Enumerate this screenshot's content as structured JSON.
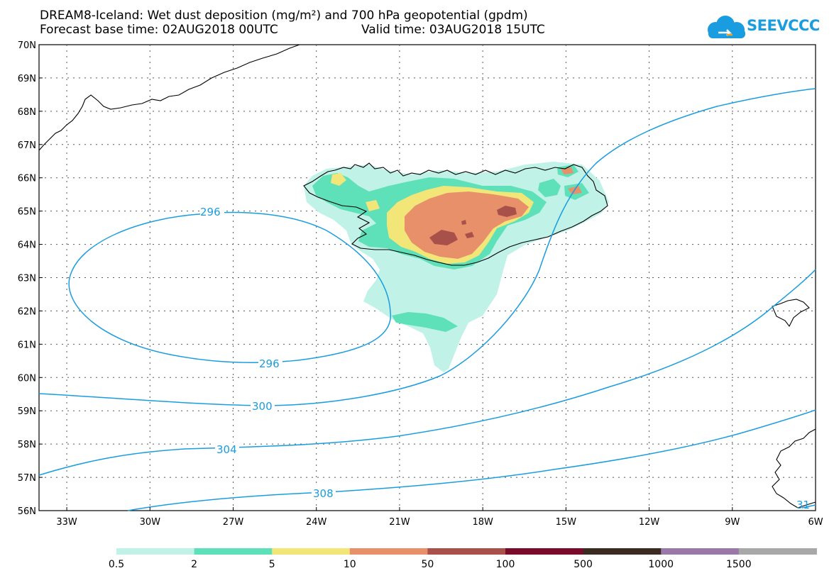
{
  "title": "DREAM8-Iceland: Wet dust deposition (mg/m²) and 700 hPa geopotential (gpdm)",
  "forecast_base": "Forecast base time: 02AUG2018 00UTC",
  "valid_time": "Valid time: 03AUG2018 15UTC",
  "logo_text": "SEEVCCC",
  "colors": {
    "contour": "#1a9de0",
    "coast": "#000000",
    "grid": "#555555"
  },
  "lat_labels": [
    "70N",
    "69N",
    "68N",
    "67N",
    "66N",
    "65N",
    "64N",
    "63N",
    "62N",
    "61N",
    "60N",
    "59N",
    "58N",
    "57N",
    "56N"
  ],
  "lon_labels": [
    "33W",
    "30W",
    "27W",
    "24W",
    "21W",
    "18W",
    "15W",
    "12W",
    "9W",
    "6W"
  ],
  "contour_labels": [
    "296",
    "296",
    "300",
    "304",
    "308",
    "31"
  ],
  "legend": {
    "labels": [
      "0.5",
      "2",
      "5",
      "10",
      "50",
      "100",
      "500",
      "1000",
      "1500"
    ],
    "colors": [
      "#c0f2e8",
      "#5ee0b8",
      "#f2e678",
      "#e8906a",
      "#a8504a",
      "#7a0a2a",
      "#3a2a20",
      "#9a78a8",
      "#a8a8a8"
    ]
  }
}
